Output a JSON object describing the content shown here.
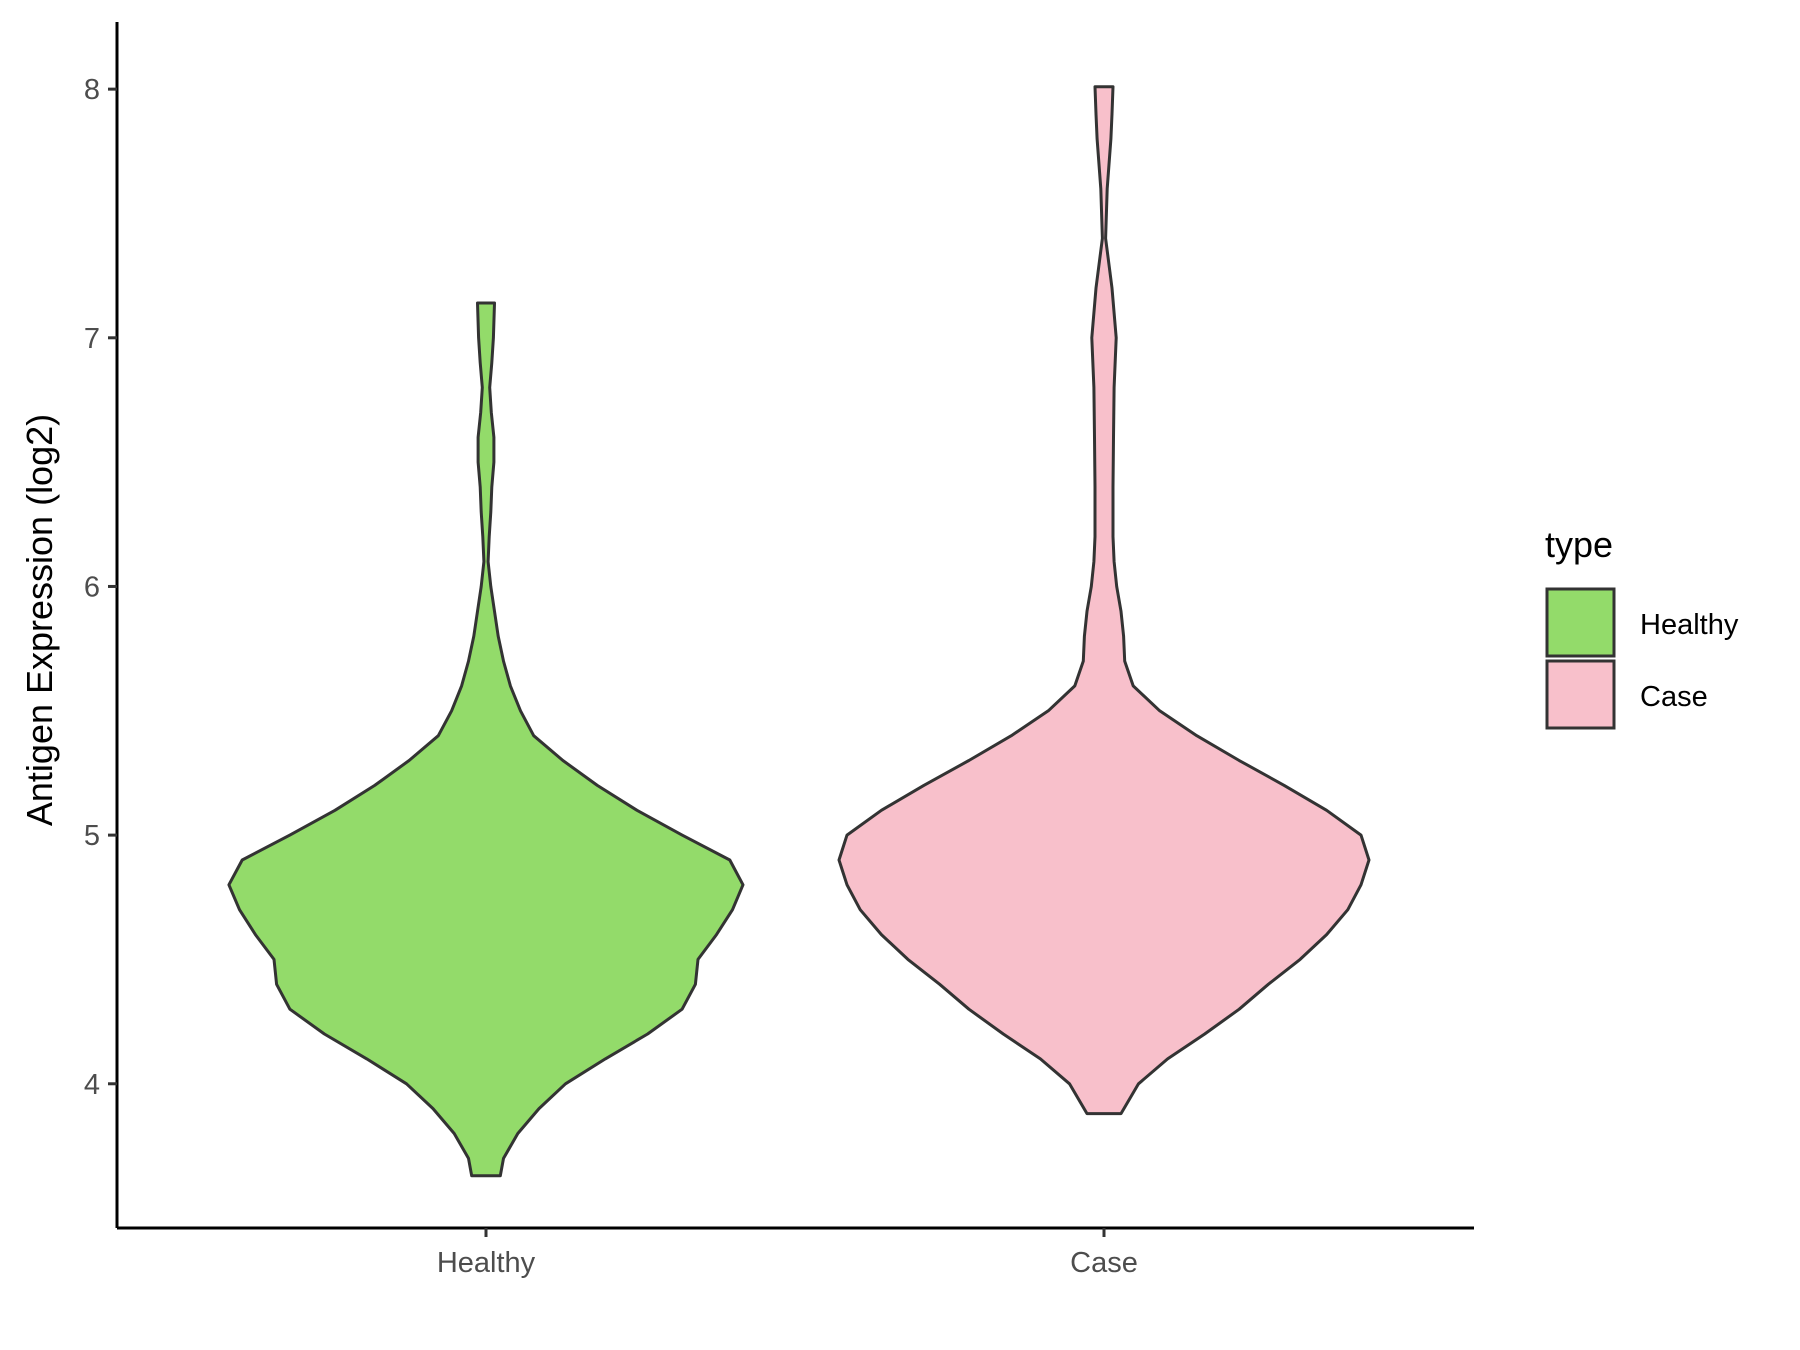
{
  "chart_data": {
    "type": "violin",
    "title": "",
    "xlabel": "",
    "ylabel": "Antigen Expression (log2)",
    "ylim": [
      3.42,
      8.27
    ],
    "yticks": [
      4,
      5,
      6,
      7,
      8
    ],
    "categories": [
      "Healthy",
      "Case"
    ],
    "grid": false,
    "legend": {
      "title": "type",
      "position": "right",
      "entries": [
        "Healthy",
        "Case"
      ]
    },
    "colors": {
      "Healthy": "#93DB6A",
      "Case": "#F8C0CB",
      "outline": "#333333"
    },
    "series": [
      {
        "name": "Healthy",
        "min": 3.63,
        "max": 7.14,
        "density_profile": [
          [
            3.63,
            0.054
          ],
          [
            3.7,
            0.066
          ],
          [
            3.8,
            0.12
          ],
          [
            3.9,
            0.2
          ],
          [
            4.0,
            0.3
          ],
          [
            4.1,
            0.45
          ],
          [
            4.2,
            0.61
          ],
          [
            4.3,
            0.74
          ],
          [
            4.4,
            0.79
          ],
          [
            4.5,
            0.8
          ],
          [
            4.6,
            0.87
          ],
          [
            4.7,
            0.93
          ],
          [
            4.8,
            0.97
          ],
          [
            4.9,
            0.92
          ],
          [
            5.0,
            0.74
          ],
          [
            5.1,
            0.57
          ],
          [
            5.2,
            0.42
          ],
          [
            5.3,
            0.29
          ],
          [
            5.4,
            0.18
          ],
          [
            5.5,
            0.13
          ],
          [
            5.6,
            0.092
          ],
          [
            5.7,
            0.066
          ],
          [
            5.8,
            0.046
          ],
          [
            5.9,
            0.032
          ],
          [
            6.0,
            0.018
          ],
          [
            6.1,
            0.008
          ],
          [
            6.2,
            0.012
          ],
          [
            6.3,
            0.018
          ],
          [
            6.4,
            0.022
          ],
          [
            6.5,
            0.03
          ],
          [
            6.6,
            0.03
          ],
          [
            6.7,
            0.02
          ],
          [
            6.8,
            0.014
          ],
          [
            6.9,
            0.022
          ],
          [
            7.0,
            0.028
          ],
          [
            7.14,
            0.032
          ]
        ]
      },
      {
        "name": "Case",
        "min": 3.88,
        "max": 8.01,
        "density_profile": [
          [
            3.88,
            0.064
          ],
          [
            4.0,
            0.13
          ],
          [
            4.1,
            0.24
          ],
          [
            4.2,
            0.38
          ],
          [
            4.3,
            0.51
          ],
          [
            4.4,
            0.62
          ],
          [
            4.5,
            0.74
          ],
          [
            4.6,
            0.84
          ],
          [
            4.7,
            0.92
          ],
          [
            4.8,
            0.97
          ],
          [
            4.9,
            1.0
          ],
          [
            5.0,
            0.97
          ],
          [
            5.1,
            0.84
          ],
          [
            5.2,
            0.68
          ],
          [
            5.3,
            0.51
          ],
          [
            5.4,
            0.35
          ],
          [
            5.5,
            0.21
          ],
          [
            5.6,
            0.11
          ],
          [
            5.7,
            0.078
          ],
          [
            5.8,
            0.074
          ],
          [
            5.9,
            0.064
          ],
          [
            6.0,
            0.048
          ],
          [
            6.1,
            0.038
          ],
          [
            6.2,
            0.034
          ],
          [
            6.4,
            0.034
          ],
          [
            6.6,
            0.036
          ],
          [
            6.8,
            0.038
          ],
          [
            7.0,
            0.046
          ],
          [
            7.2,
            0.03
          ],
          [
            7.4,
            0.006
          ],
          [
            7.6,
            0.012
          ],
          [
            7.8,
            0.026
          ],
          [
            7.9,
            0.03
          ],
          [
            8.01,
            0.034
          ]
        ]
      }
    ]
  }
}
